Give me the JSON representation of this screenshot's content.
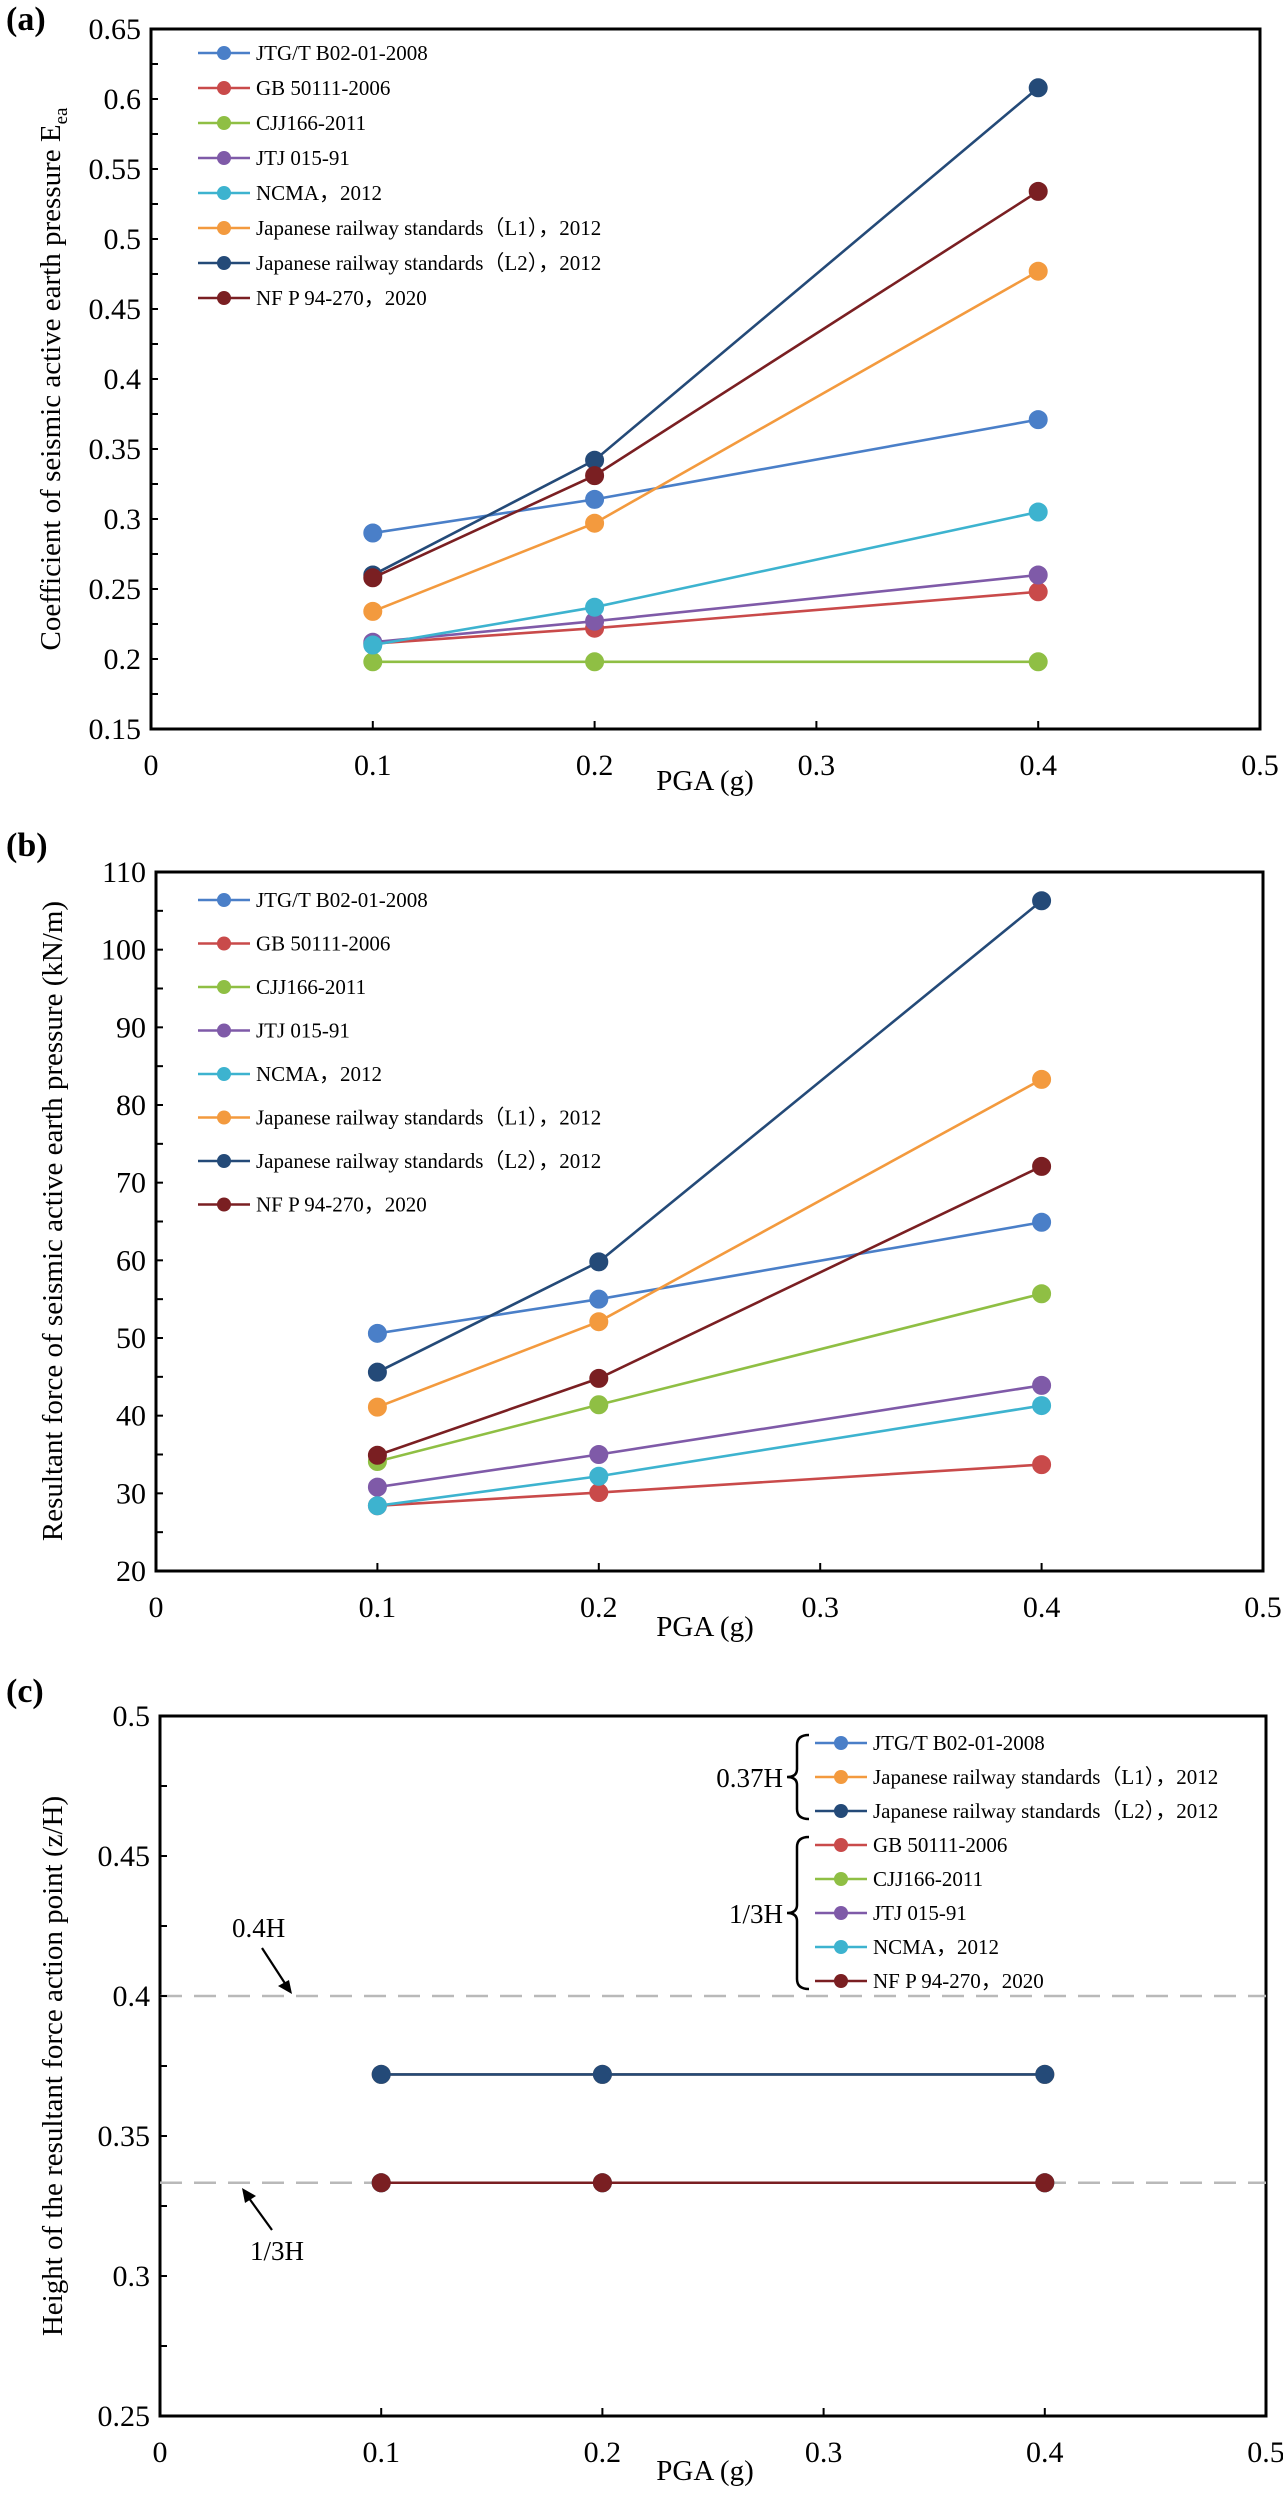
{
  "colors": {
    "JTG/T B02-01-2008": "#4a7fc8",
    "GB 50111-2006": "#c94a4a",
    "CJJ166-2011": "#8fbf44",
    "JTJ 015-91": "#7f5aa8",
    "NCMA，2012": "#3db3cf",
    "Japanese railway standards（L1），2012": "#f39a3e",
    "Japanese railway standards（L2），2012": "#244a78",
    "NF P 94-270，2020": "#7a1f22"
  },
  "chart_data": [
    {
      "panel": "(a)",
      "type": "line",
      "title": "",
      "xlabel": "PGA (g)",
      "ylabel": "Coefficient of seismic active earth pressure E",
      "ylabel_subscript": "ea",
      "xlim": [
        0,
        0.5
      ],
      "ylim": [
        0.15,
        0.65
      ],
      "x_ticks": [
        "0",
        "0.1",
        "0.2",
        "0.3",
        "0.4",
        "0.5"
      ],
      "y_ticks": [
        "0.15",
        "0.2",
        "0.25",
        "0.3",
        "0.35",
        "0.4",
        "0.45",
        "0.5",
        "0.55",
        "0.6",
        "0.65"
      ],
      "grid": false,
      "legend_position": "top-left",
      "x": [
        0.1,
        0.2,
        0.4
      ],
      "series": [
        {
          "name": "JTG/T B02-01-2008",
          "values": [
            0.29,
            0.314,
            0.371
          ]
        },
        {
          "name": "GB 50111-2006",
          "values": [
            0.211,
            0.222,
            0.248
          ]
        },
        {
          "name": "CJJ166-2011",
          "values": [
            0.198,
            0.198,
            0.198
          ]
        },
        {
          "name": "JTJ 015-91",
          "values": [
            0.212,
            0.227,
            0.26
          ]
        },
        {
          "name": "NCMA，2012",
          "values": [
            0.21,
            0.237,
            0.305
          ]
        },
        {
          "name": "Japanese railway standards（L1），2012",
          "values": [
            0.234,
            0.297,
            0.477
          ]
        },
        {
          "name": "Japanese railway standards（L2），2012",
          "values": [
            0.26,
            0.342,
            0.608
          ]
        },
        {
          "name": "NF P 94-270，2020",
          "values": [
            0.258,
            0.331,
            0.534
          ]
        }
      ]
    },
    {
      "panel": "(b)",
      "type": "line",
      "title": "",
      "xlabel": "PGA (g)",
      "ylabel": "Resultant force of seismic active earth pressure (kN/m)",
      "xlim": [
        0,
        0.5
      ],
      "ylim": [
        20,
        110
      ],
      "x_ticks": [
        "0",
        "0.1",
        "0.2",
        "0.3",
        "0.4",
        "0.5"
      ],
      "y_ticks": [
        "20",
        "30",
        "40",
        "50",
        "60",
        "70",
        "80",
        "90",
        "100",
        "110"
      ],
      "grid": false,
      "legend_position": "top-left",
      "x": [
        0.1,
        0.2,
        0.4
      ],
      "series": [
        {
          "name": "JTG/T B02-01-2008",
          "values": [
            50.6,
            55.0,
            64.9
          ]
        },
        {
          "name": "GB 50111-2006",
          "values": [
            28.4,
            30.1,
            33.7
          ]
        },
        {
          "name": "CJJ166-2011",
          "values": [
            34.1,
            41.4,
            55.7
          ]
        },
        {
          "name": "JTJ 015-91",
          "values": [
            30.8,
            35.0,
            43.9
          ]
        },
        {
          "name": "NCMA，2012",
          "values": [
            28.4,
            32.2,
            41.3
          ]
        },
        {
          "name": "Japanese railway standards（L1），2012",
          "values": [
            41.1,
            52.1,
            83.3
          ]
        },
        {
          "name": "Japanese railway standards（L2），2012",
          "values": [
            45.6,
            59.8,
            106.3
          ]
        },
        {
          "name": "NF P 94-270，2020",
          "values": [
            34.9,
            44.8,
            72.1
          ]
        }
      ]
    },
    {
      "panel": "(c)",
      "type": "line",
      "title": "",
      "xlabel": "PGA (g)",
      "ylabel": "Height of the resultant force action point (z/H)",
      "xlim": [
        0,
        0.5
      ],
      "ylim": [
        0.25,
        0.5
      ],
      "x_ticks": [
        "0",
        "0.1",
        "0.2",
        "0.3",
        "0.4",
        "0.5"
      ],
      "y_ticks": [
        "0.25",
        "0.3",
        "0.35",
        "0.4",
        "0.45",
        "0.5"
      ],
      "grid": false,
      "legend_position": "top-right",
      "x": [
        0.1,
        0.2,
        0.4
      ],
      "series": [
        {
          "name": "JTG/T B02-01-2008",
          "values": [
            0.372,
            0.372,
            0.372
          ]
        },
        {
          "name": "Japanese railway standards（L1），2012",
          "values": [
            0.372,
            0.372,
            0.372
          ]
        },
        {
          "name": "Japanese railway standards（L2），2012",
          "values": [
            0.372,
            0.372,
            0.372
          ]
        },
        {
          "name": "GB 50111-2006",
          "values": [
            0.3333,
            0.3333,
            0.3333
          ]
        },
        {
          "name": "CJJ166-2011",
          "values": [
            0.3333,
            0.3333,
            0.3333
          ]
        },
        {
          "name": "JTJ 015-91",
          "values": [
            0.3333,
            0.3333,
            0.3333
          ]
        },
        {
          "name": "NCMA，2012",
          "values": [
            0.3333,
            0.3333,
            0.3333
          ]
        },
        {
          "name": "NF P 94-270，2020",
          "values": [
            0.3333,
            0.3333,
            0.3333
          ]
        }
      ],
      "legend_groups": [
        {
          "label": "0.37H",
          "members": [
            "JTG/T B02-01-2008",
            "Japanese railway standards（L1），2012",
            "Japanese railway standards（L2），2012"
          ]
        },
        {
          "label": "1/3H",
          "members": [
            "GB 50111-2006",
            "CJJ166-2011",
            "JTJ 015-91",
            "NCMA，2012",
            "NF P 94-270，2020"
          ]
        }
      ],
      "reference_lines": [
        {
          "value": 0.4,
          "label": "0.4H",
          "style": "dashed"
        },
        {
          "value": 0.3333,
          "label": "1/3H",
          "style": "dashed"
        }
      ]
    }
  ]
}
